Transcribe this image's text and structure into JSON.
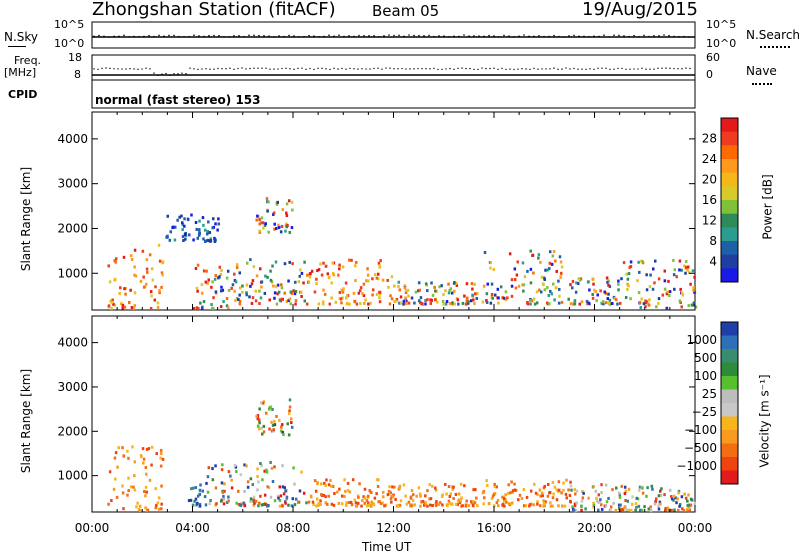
{
  "header": {
    "station": "Zhongshan Station (fitACF)",
    "beam": "Beam 05",
    "date": "19/Aug/2015"
  },
  "strip_nsky": {
    "left_label": "N.Sky",
    "right_label": "N.Search",
    "left_ticks": [
      "10^5",
      "10^0"
    ],
    "right_ticks": [
      "10^5",
      "10^0"
    ]
  },
  "strip_freq": {
    "left_label_1": "Freq.",
    "left_label_2": "[MHz]",
    "right_label": "Nave",
    "left_ticks": [
      "18",
      "8"
    ],
    "right_ticks": [
      "60",
      "0"
    ]
  },
  "cpid": {
    "label": "CPID",
    "value": "normal (fast stereo) 153"
  },
  "chart_data": [
    {
      "type": "heatmap",
      "quantity": "Power",
      "ylabel": "Slant Range [km]",
      "y_ticks": [
        "4000",
        "3000",
        "2000",
        "1000"
      ],
      "ylim": [
        180,
        4600
      ],
      "xlim": [
        0,
        24
      ],
      "colorbar_label": "Power [dB]",
      "colorbar_ticks": [
        "28",
        "24",
        "20",
        "16",
        "12",
        "8",
        "4"
      ],
      "colorbar_colors": [
        "#e31a1c",
        "#f03b20",
        "#fd6a02",
        "#fd9a1e",
        "#f5b81b",
        "#d6cb2a",
        "#7fc23a",
        "#2e8b57",
        "#2a9d8f",
        "#1f5fa8",
        "#1e3fa0",
        "#1a1ae6"
      ],
      "echo_regions": [
        {
          "t": [
            0.6,
            2.8
          ],
          "r": [
            200,
            1700
          ],
          "level": "high"
        },
        {
          "t": [
            2.9,
            5.0
          ],
          "r": [
            1700,
            2300
          ],
          "level": "low"
        },
        {
          "t": [
            4.0,
            5.5
          ],
          "r": [
            200,
            1300
          ],
          "level": "mixed"
        },
        {
          "t": [
            5.5,
            8.5
          ],
          "r": [
            300,
            1300
          ],
          "level": "mixed"
        },
        {
          "t": [
            6.5,
            8.0
          ],
          "r": [
            1900,
            2700
          ],
          "level": "mixed"
        },
        {
          "t": [
            8.5,
            12.0
          ],
          "r": [
            300,
            1300
          ],
          "level": "high"
        },
        {
          "t": [
            12.0,
            15.3
          ],
          "r": [
            300,
            800
          ],
          "level": "mixed"
        },
        {
          "t": [
            15.5,
            19.0
          ],
          "r": [
            300,
            1500
          ],
          "level": "mixed"
        },
        {
          "t": [
            19.0,
            21.0
          ],
          "r": [
            300,
            900
          ],
          "level": "mixed"
        },
        {
          "t": [
            21.0,
            24.0
          ],
          "r": [
            200,
            1300
          ],
          "level": "mixed"
        }
      ]
    },
    {
      "type": "heatmap",
      "quantity": "Velocity",
      "ylabel": "Slant Range [km]",
      "xlabel": "Time UT",
      "x_ticks": [
        "00:00",
        "04:00",
        "08:00",
        "12:00",
        "16:00",
        "20:00",
        "00:00"
      ],
      "y_ticks": [
        "4000",
        "3000",
        "2000",
        "1000"
      ],
      "ylim": [
        180,
        4600
      ],
      "xlim": [
        0,
        24
      ],
      "colorbar_label": "Velocity [m s⁻¹]",
      "colorbar_ticks": [
        "1000",
        "500",
        "100",
        "25",
        "−25",
        "−100",
        "−500",
        "−1000"
      ],
      "colorbar_colors": [
        "#1f3fa8",
        "#2e6fb8",
        "#3a8c6e",
        "#2e8b3a",
        "#56c02d",
        "#bdbdbd",
        "#c8c8c8",
        "#f7b41b",
        "#f79a1e",
        "#f36d12",
        "#ee4410",
        "#e31a1c"
      ],
      "echo_regions": [
        {
          "t": [
            0.6,
            2.8
          ],
          "r": [
            200,
            1700
          ],
          "velocity": "negative"
        },
        {
          "t": [
            3.8,
            4.5
          ],
          "r": [
            300,
            800
          ],
          "velocity": "positive"
        },
        {
          "t": [
            4.5,
            8.5
          ],
          "r": [
            300,
            1300
          ],
          "velocity": "mixed"
        },
        {
          "t": [
            6.5,
            8.0
          ],
          "r": [
            1900,
            2700
          ],
          "velocity": "mixed"
        },
        {
          "t": [
            8.5,
            12.0
          ],
          "r": [
            300,
            900
          ],
          "velocity": "negative"
        },
        {
          "t": [
            12.0,
            15.3
          ],
          "r": [
            300,
            800
          ],
          "velocity": "negative"
        },
        {
          "t": [
            15.5,
            19.0
          ],
          "r": [
            300,
            900
          ],
          "velocity": "negative"
        },
        {
          "t": [
            19.0,
            24.0
          ],
          "r": [
            200,
            800
          ],
          "velocity": "mixed"
        }
      ]
    }
  ],
  "colors": {
    "power_high": "#e31a1c",
    "power_mid": "#fd9a1e",
    "power_low": "#1f3fa8",
    "vel_neg": "#f79a1e",
    "vel_pos": "#2e6fb8",
    "vel_zero": "#c8c8c8"
  }
}
